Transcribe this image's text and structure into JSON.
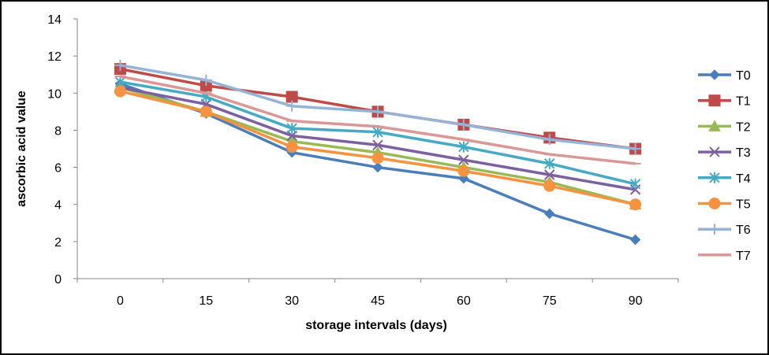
{
  "chart_data": {
    "type": "line",
    "xlabel": "storage intervals (days)",
    "ylabel": "ascorbic acid value",
    "categories": [
      "0",
      "15",
      "30",
      "45",
      "60",
      "75",
      "90"
    ],
    "ylim": [
      0,
      14
    ],
    "yticks": [
      0,
      2,
      4,
      6,
      8,
      10,
      12,
      14
    ],
    "grid": false,
    "legend_position": "right",
    "series": [
      {
        "name": "T0",
        "color": "#4A7EBB",
        "marker": "diamond",
        "values": [
          10.5,
          8.9,
          6.8,
          6.0,
          5.4,
          3.5,
          2.1
        ]
      },
      {
        "name": "T1",
        "color": "#BE4B48",
        "marker": "square",
        "values": [
          11.3,
          10.4,
          9.8,
          9.0,
          8.3,
          7.6,
          7.0
        ]
      },
      {
        "name": "T2",
        "color": "#98B954",
        "marker": "triangle",
        "values": [
          10.3,
          9.0,
          7.4,
          6.8,
          6.0,
          5.2,
          4.0
        ]
      },
      {
        "name": "T3",
        "color": "#7D60A0",
        "marker": "x",
        "values": [
          10.3,
          9.4,
          7.7,
          7.2,
          6.4,
          5.6,
          4.8
        ]
      },
      {
        "name": "T4",
        "color": "#46AAC5",
        "marker": "star",
        "values": [
          10.6,
          9.8,
          8.1,
          7.9,
          7.1,
          6.2,
          5.1
        ]
      },
      {
        "name": "T5",
        "color": "#F69240",
        "marker": "circle",
        "values": [
          10.1,
          9.0,
          7.1,
          6.5,
          5.8,
          5.0,
          4.0
        ]
      },
      {
        "name": "T6",
        "color": "#95B3D7",
        "marker": "plus",
        "values": [
          11.5,
          10.7,
          9.3,
          9.0,
          8.3,
          7.5,
          7.0
        ]
      },
      {
        "name": "T7",
        "color": "#D99795",
        "marker": "dash",
        "values": [
          10.9,
          10.0,
          8.5,
          8.2,
          7.5,
          6.7,
          6.2
        ]
      }
    ]
  }
}
